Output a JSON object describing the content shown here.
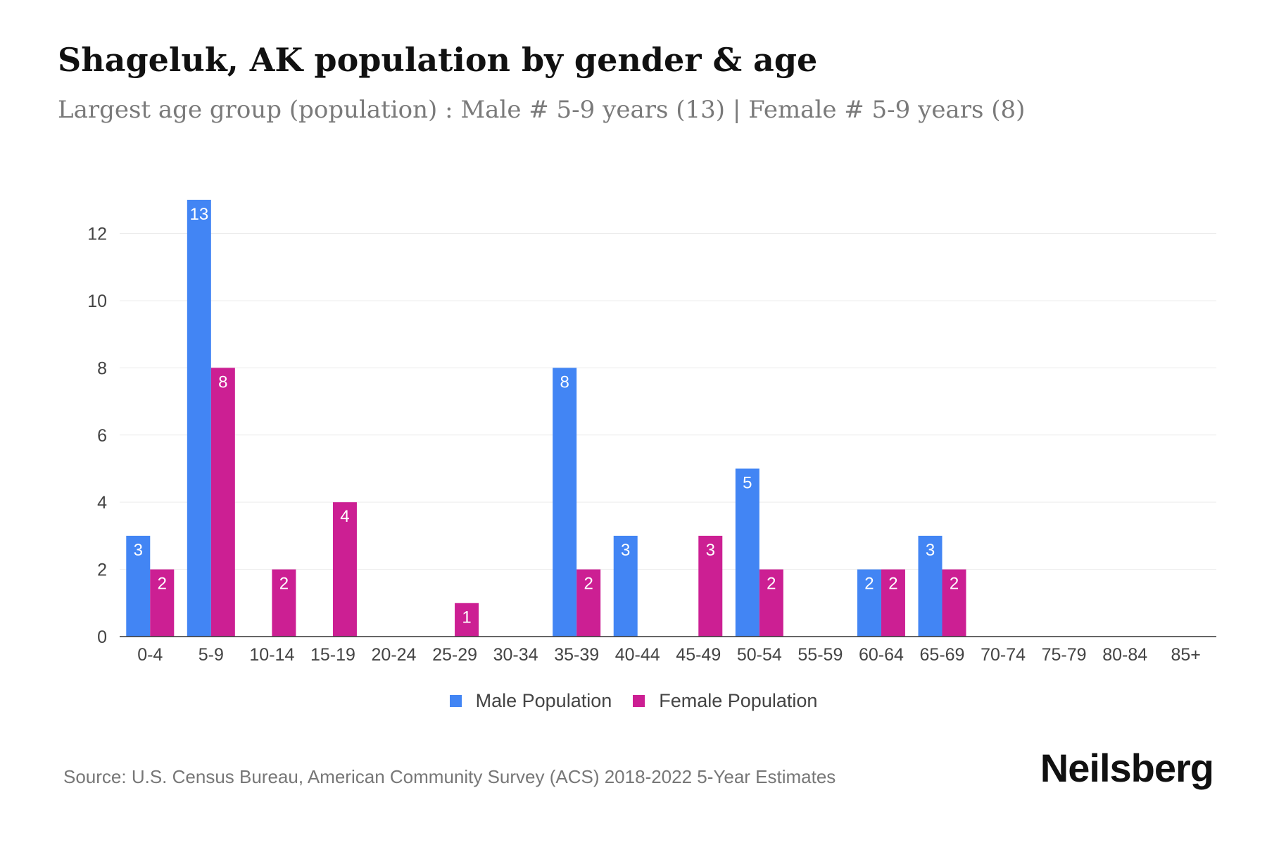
{
  "chart_data": {
    "type": "bar",
    "title": "Shageluk, AK population by gender & age",
    "subtitle": "Largest age group (population) : Male # 5-9 years (13) | Female # 5-9 years (8)",
    "categories": [
      "0-4",
      "5-9",
      "10-14",
      "15-19",
      "20-24",
      "25-29",
      "30-34",
      "35-39",
      "40-44",
      "45-49",
      "50-54",
      "55-59",
      "60-64",
      "65-69",
      "70-74",
      "75-79",
      "80-84",
      "85+"
    ],
    "series": [
      {
        "name": "Male Population",
        "color": "#4285f4",
        "values": [
          3,
          13,
          0,
          0,
          0,
          0,
          0,
          8,
          3,
          0,
          5,
          0,
          2,
          3,
          0,
          0,
          0,
          0
        ]
      },
      {
        "name": "Female Population",
        "color": "#cc1f93",
        "values": [
          2,
          8,
          2,
          4,
          0,
          1,
          0,
          2,
          0,
          3,
          2,
          0,
          2,
          2,
          0,
          0,
          0,
          0
        ]
      }
    ],
    "yticks": [
      0,
      2,
      4,
      6,
      8,
      10,
      12
    ],
    "ylim": [
      0,
      13.5
    ],
    "xlabel": "",
    "ylabel": "",
    "grid": true,
    "legend_position": "bottom-center"
  },
  "source": "Source: U.S. Census Bureau, American Community Survey (ACS) 2018-2022 5-Year Estimates",
  "brand": "Neilsberg"
}
